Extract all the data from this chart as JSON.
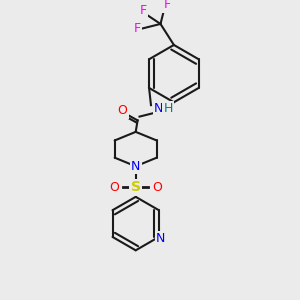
{
  "background_color": "#ebebeb",
  "bond_color": "#1a1a1a",
  "colors": {
    "N": "#0000ee",
    "O": "#ff0000",
    "F": "#ff00ff",
    "S": "#cccc00",
    "H": "#008080",
    "C": "#1a1a1a"
  },
  "lw": 1.5,
  "lw2": 2.0
}
